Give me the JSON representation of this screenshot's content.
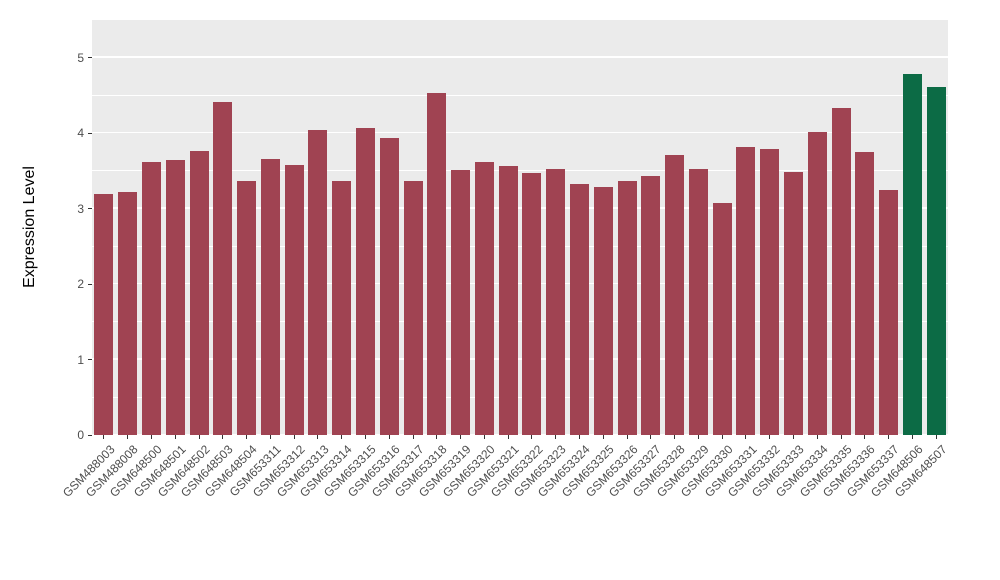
{
  "chart_data": {
    "type": "bar",
    "title": "",
    "xlabel": "",
    "ylabel": "Expression Level",
    "categories": [
      "GSM488003",
      "GSM488008",
      "GSM648500",
      "GSM648501",
      "GSM648502",
      "GSM648503",
      "GSM648504",
      "GSM653311",
      "GSM653312",
      "GSM653313",
      "GSM653314",
      "GSM653315",
      "GSM653316",
      "GSM653317",
      "GSM653318",
      "GSM653319",
      "GSM653320",
      "GSM653321",
      "GSM653322",
      "GSM653323",
      "GSM653324",
      "GSM653325",
      "GSM653326",
      "GSM653327",
      "GSM653328",
      "GSM653329",
      "GSM653330",
      "GSM653331",
      "GSM653332",
      "GSM653333",
      "GSM653334",
      "GSM653335",
      "GSM653336",
      "GSM653337",
      "GSM648506",
      "GSM648507"
    ],
    "values": [
      3.2,
      3.22,
      3.62,
      3.65,
      3.76,
      4.42,
      3.37,
      3.66,
      3.58,
      4.04,
      3.36,
      4.07,
      3.94,
      3.37,
      4.53,
      3.51,
      3.62,
      3.57,
      3.47,
      3.52,
      3.33,
      3.29,
      3.36,
      3.43,
      3.71,
      3.52,
      3.07,
      3.82,
      3.79,
      3.49,
      4.02,
      4.33,
      3.75,
      3.25,
      4.78,
      4.61
    ],
    "bar_color": "#A04352",
    "highlight_color": "#0C6B45",
    "highlight_indices": [
      34,
      35
    ],
    "ylim": [
      0,
      5
    ],
    "yticks": [
      0,
      1,
      2,
      3,
      4,
      5
    ],
    "grid": "on",
    "legend": "none",
    "panel_bg": "#EBEBEB",
    "grid_color": "#FFFFFF"
  }
}
